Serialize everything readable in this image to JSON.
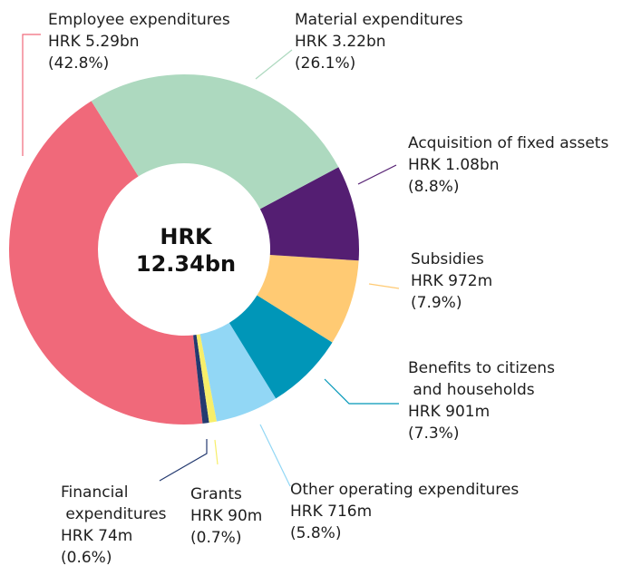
{
  "chart_data": {
    "type": "donut",
    "center_label": [
      "HRK",
      "12.34bn"
    ],
    "categories": [
      "Material expenditures",
      "Acquisition of fixed assets",
      "Subsidies",
      "Benefits to citizens and households",
      "Other operating expenditures",
      "Grants",
      "Financial expenditures",
      "Employee expenditures"
    ],
    "amounts": [
      "HRK 3.22bn",
      "HRK 1.08bn",
      "HRK 972m",
      "HRK 901m",
      "HRK 716m",
      "HRK 90m",
      "HRK 74m",
      "HRK 5.29bn"
    ],
    "values": [
      26.1,
      8.8,
      7.9,
      7.3,
      5.8,
      0.7,
      0.6,
      42.8
    ],
    "value_labels": [
      "(26.1%)",
      "(8.8%)",
      "(7.9%)",
      "(7.3%)",
      "(5.8%)",
      "(0.7%)",
      "(0.6%)",
      "(42.8%)"
    ],
    "colors": [
      "#add9bf",
      "#541e72",
      "#ffca73",
      "#0096b8",
      "#92d7f5",
      "#f7ee6a",
      "#243a70",
      "#f0697a"
    ]
  }
}
